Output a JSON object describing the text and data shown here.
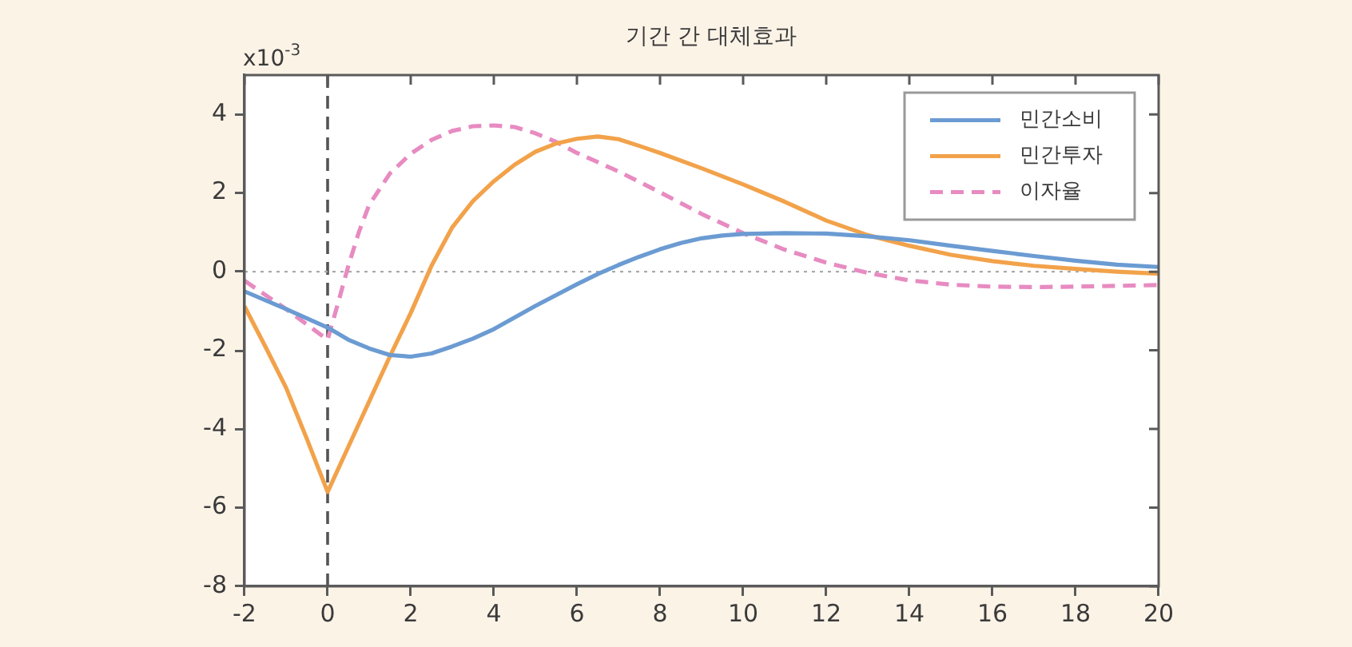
{
  "chart_data": {
    "type": "line",
    "title": "기간 간 대체효과",
    "ylabel": "x10$^{-3}$",
    "series": [
      {
        "name": "민간소비",
        "color": "#6b9bd2",
        "line_style": "solid",
        "x": [
          -2,
          -1,
          0,
          0.5,
          1,
          1.5,
          2,
          2.5,
          3,
          3.5,
          4,
          5,
          6,
          6.5,
          7,
          7.5,
          8,
          8.5,
          9,
          9.5,
          10,
          11,
          12,
          13,
          14,
          15,
          16,
          17,
          18,
          19,
          20
        ],
        "values": [
          -0.5,
          -0.95,
          -1.42,
          -1.73,
          -1.95,
          -2.12,
          -2.16,
          -2.08,
          -1.9,
          -1.7,
          -1.46,
          -0.87,
          -0.32,
          -0.06,
          0.17,
          0.38,
          0.57,
          0.73,
          0.85,
          0.92,
          0.96,
          0.98,
          0.97,
          0.9,
          0.8,
          0.66,
          0.53,
          0.4,
          0.28,
          0.18,
          0.12
        ]
      },
      {
        "name": "민간투자",
        "color": "#f2a24a",
        "line_style": "solid",
        "x": [
          -2,
          -1.5,
          -1,
          -0.5,
          0,
          0.5,
          1,
          1.5,
          2,
          2.5,
          3,
          3.5,
          4,
          4.5,
          5,
          5.5,
          6,
          6.5,
          7,
          7.5,
          8,
          9,
          10,
          11,
          12,
          13,
          14,
          15,
          16,
          17,
          18,
          19,
          20
        ],
        "values": [
          -0.88,
          -1.9,
          -2.95,
          -4.25,
          -5.6,
          -4.45,
          -3.3,
          -2.15,
          -1.05,
          0.15,
          1.13,
          1.8,
          2.3,
          2.72,
          3.05,
          3.26,
          3.38,
          3.44,
          3.37,
          3.2,
          3.02,
          2.63,
          2.22,
          1.78,
          1.3,
          0.93,
          0.66,
          0.43,
          0.27,
          0.15,
          0.07,
          0,
          -0.05
        ]
      },
      {
        "name": "이자율",
        "color": "#e78bc1",
        "line_style": "dashed",
        "x": [
          -2,
          -1,
          0,
          0.25,
          0.5,
          0.75,
          1,
          1.5,
          2,
          2.5,
          3,
          3.5,
          4,
          4.5,
          5,
          5.5,
          6,
          7,
          8,
          9,
          10,
          11,
          12,
          13,
          14,
          15,
          16,
          17,
          18,
          19,
          20
        ],
        "values": [
          -0.23,
          -0.95,
          -1.73,
          -0.8,
          0.15,
          1.0,
          1.7,
          2.5,
          3.0,
          3.35,
          3.58,
          3.7,
          3.72,
          3.68,
          3.52,
          3.3,
          3.02,
          2.55,
          2.02,
          1.47,
          0.98,
          0.56,
          0.23,
          -0.03,
          -0.22,
          -0.33,
          -0.38,
          -0.39,
          -0.38,
          -0.36,
          -0.34
        ]
      }
    ],
    "xlim": [
      -2,
      20
    ],
    "xticks": [
      -2,
      0,
      2,
      4,
      6,
      8,
      10,
      12,
      14,
      16,
      18,
      20
    ],
    "ylim": [
      -8,
      5
    ],
    "yticks": [
      -8,
      -6,
      -4,
      -2,
      0,
      2,
      4
    ],
    "ref_lines": [
      {
        "axis": "x",
        "value": 0,
        "color": "#555555",
        "line_style": "dashed"
      },
      {
        "axis": "y",
        "value": 0,
        "color": "#aaaaaa",
        "line_style": "dotted"
      }
    ],
    "grid": false,
    "legend": "top right",
    "marker": "none"
  }
}
